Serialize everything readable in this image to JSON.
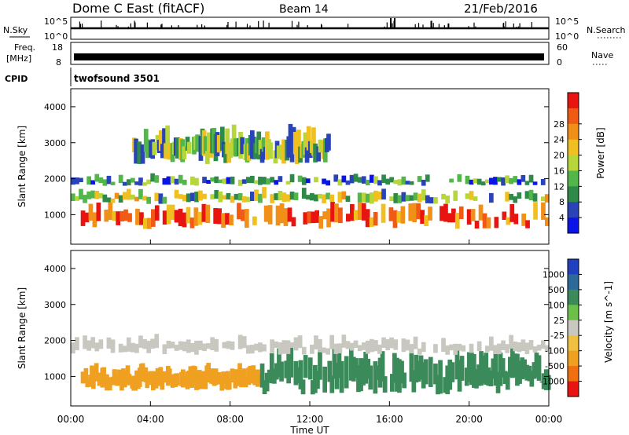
{
  "header": {
    "station": "Dome C East (fitACF)",
    "beam": "Beam 14",
    "date": "21/Feb/2016"
  },
  "strips": {
    "nsky_label": "N.Sky",
    "nsky_tick_top": "10^5",
    "nsky_tick_bottom": "10^0",
    "nsearch_label": "N.Search",
    "freq_label_line1": "Freq.",
    "freq_label_line2": "[MHz]",
    "freq_ticks": [
      "18",
      "8"
    ],
    "nave_label": "Nave",
    "nave_ticks": [
      "60",
      "0"
    ],
    "cpid_label": "CPID",
    "cpid_value": "twofsound 3501"
  },
  "chart_data": [
    {
      "type": "heatmap",
      "panel": "power",
      "ylabel": "Slant Range [km]",
      "yticks": [
        "1000",
        "2000",
        "3000",
        "4000"
      ],
      "ylim": [
        180,
        4500
      ],
      "colorbar_label": "Power [dB]",
      "colorbar_ticks": [
        "4",
        "8",
        "12",
        "16",
        "20",
        "24",
        "28"
      ],
      "colorbar_colors": [
        "#0a14e6",
        "#2a44b8",
        "#2f8a4a",
        "#52b64a",
        "#b6d63a",
        "#f0c020",
        "#f09018",
        "#f05a14",
        "#e81410"
      ],
      "time_range_ut": [
        "00:00",
        "24:00"
      ],
      "bands": [
        {
          "range_km": [
            600,
            1300
          ],
          "t_start": 0.5,
          "t_end": 24.0,
          "value_db": 26
        },
        {
          "range_km": [
            1300,
            1700
          ],
          "t_start": 0.0,
          "t_end": 24.0,
          "value_db": 14
        },
        {
          "range_km": [
            1800,
            2100
          ],
          "t_start": 0.0,
          "t_end": 24.0,
          "value_db": 9
        },
        {
          "range_km": [
            2400,
            3400
          ],
          "t_start": 3.0,
          "t_end": 13.0,
          "value_db": 12
        }
      ]
    },
    {
      "type": "heatmap",
      "panel": "velocity",
      "ylabel": "Slant Range [km]",
      "yticks": [
        "1000",
        "2000",
        "3000",
        "4000"
      ],
      "ylim": [
        180,
        4500
      ],
      "colorbar_label": "Velocity [m s^-1]",
      "colorbar_ticks": [
        "1000",
        "500",
        "100",
        "25",
        "-25",
        "-100",
        "-500",
        "-1000"
      ],
      "colorbar_colors": [
        "#2040c0",
        "#2d6a9a",
        "#3a8a5a",
        "#6cc04a",
        "#c8c8c0",
        "#f0c040",
        "#f0a020",
        "#f07010",
        "#e81410"
      ],
      "time_range_ut": [
        "00:00",
        "24:00"
      ],
      "bands": [
        {
          "range_km": [
            600,
            1300
          ],
          "t_start": 0.5,
          "t_end": 9.5,
          "value_ms": -300
        },
        {
          "range_km": [
            500,
            1700
          ],
          "t_start": 9.5,
          "t_end": 24.0,
          "value_ms": 200
        },
        {
          "range_km": [
            1600,
            2100
          ],
          "t_start": 0.0,
          "t_end": 24.0,
          "value_ms": 0
        }
      ]
    }
  ],
  "xaxis": {
    "ticks": [
      "00:00",
      "04:00",
      "08:00",
      "12:00",
      "16:00",
      "20:00",
      "00:00"
    ],
    "label": "Time UT"
  }
}
